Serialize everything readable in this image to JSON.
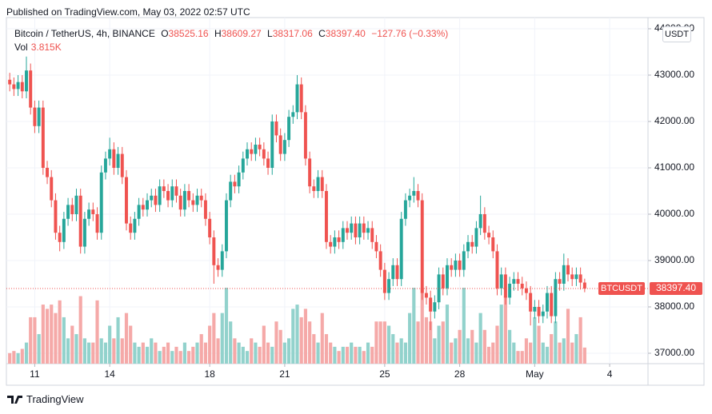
{
  "header": {
    "published": "Published on TradingView.com, May 03, 2022 02:57 UTC"
  },
  "chart_data": {
    "type": "candlestick",
    "title": "Bitcoin / TetherUS, 4h, BINANCE",
    "legend": {
      "open_prefix": "O",
      "open": "38525.16",
      "high_prefix": "H",
      "high": "38609.27",
      "low_prefix": "L",
      "low": "38317.06",
      "close_prefix": "C",
      "close": "38397.40",
      "change": "−127.76 (−0.33%)",
      "volume_label": "Vol",
      "volume": "3.815K"
    },
    "currency": "USDT",
    "symbol": "BTCUSDT",
    "last_price": {
      "value": 38397.4,
      "label": "38397.40"
    },
    "up_color": "#26a69a",
    "down_color": "#ef5350",
    "volume_up_color": "#92d2cc",
    "volume_down_color": "#f5a9a8",
    "grid": true,
    "xlim": [
      -0.8,
      153.2
    ],
    "xticks": [
      {
        "value": 6,
        "label": "11"
      },
      {
        "value": 24,
        "label": "14"
      },
      {
        "value": 48,
        "label": "18"
      },
      {
        "value": 66,
        "label": "21"
      },
      {
        "value": 90,
        "label": "25"
      },
      {
        "value": 108,
        "label": "28"
      },
      {
        "value": 126,
        "label": "May"
      },
      {
        "value": 144,
        "label": "4"
      }
    ],
    "ylim": [
      36776,
      44241
    ],
    "yticks": [
      {
        "value": 37000,
        "label": "37000.00"
      },
      {
        "value": 38000,
        "label": "38000.00"
      },
      {
        "value": 39000,
        "label": "39000.00"
      },
      {
        "value": 40000,
        "label": "40000.00"
      },
      {
        "value": 41000,
        "label": "41000.00"
      },
      {
        "value": 42000,
        "label": "42000.00"
      },
      {
        "value": 43000,
        "label": "43000.00"
      },
      {
        "value": 44000,
        "label": "44000.00"
      }
    ],
    "open": [
      42900,
      42800,
      42700,
      42850,
      42650,
      43100,
      42300,
      41900,
      42300,
      41000,
      40800,
      40300,
      39600,
      39400,
      39900,
      40200,
      40000,
      40400,
      39300,
      39900,
      40100,
      40000,
      39600,
      40900,
      41200,
      41400,
      41000,
      41300,
      40800,
      39800,
      39600,
      39900,
      40200,
      40100,
      40300,
      40400,
      40200,
      40600,
      40500,
      40300,
      40600,
      40400,
      40100,
      40500,
      40300,
      40200,
      40400,
      40300,
      39900,
      39500,
      38900,
      38800,
      39200,
      40300,
      40700,
      40600,
      40900,
      41200,
      41400,
      41300,
      41500,
      41400,
      41200,
      41000,
      42000,
      41700,
      41300,
      41600,
      42100,
      42200,
      42800,
      42200,
      41200,
      40600,
      40500,
      40800,
      40500,
      39400,
      39300,
      39500,
      39400,
      39700,
      39600,
      39800,
      39500,
      39800,
      39600,
      39700,
      39400,
      39200,
      38800,
      38300,
      38600,
      38900,
      38600,
      39900,
      40300,
      40400,
      40500,
      40300,
      38300,
      38200,
      37900,
      38100,
      38700,
      38400,
      38900,
      38800,
      39000,
      38800,
      39200,
      39400,
      39300,
      39700,
      40000,
      39600,
      39500,
      39200,
      38400,
      38700,
      38200,
      38500,
      38600,
      38500,
      38400,
      38300,
      37900,
      38000,
      37800,
      37900,
      38300,
      37800,
      38600,
      38500,
      38900,
      38700,
      38600,
      38700,
      38525.16
    ],
    "high": [
      43050,
      42950,
      43000,
      43000,
      43400,
      43250,
      42450,
      42450,
      42450,
      41150,
      40950,
      40450,
      39750,
      40050,
      40350,
      40350,
      40550,
      40550,
      40050,
      40250,
      40250,
      40150,
      41050,
      41350,
      41650,
      41550,
      41450,
      41450,
      40950,
      39950,
      40050,
      40350,
      40350,
      40450,
      40550,
      40550,
      40750,
      40750,
      40650,
      40750,
      40750,
      40550,
      40650,
      40650,
      40450,
      40550,
      40550,
      40450,
      40050,
      39650,
      39050,
      39350,
      40450,
      40850,
      40850,
      41050,
      41350,
      41550,
      41550,
      41650,
      41650,
      41550,
      41350,
      42150,
      42150,
      41850,
      41750,
      42250,
      42350,
      43000,
      42950,
      42350,
      41350,
      40750,
      40950,
      40950,
      40650,
      39550,
      39650,
      39650,
      39850,
      39850,
      39950,
      39950,
      39950,
      39950,
      39850,
      39850,
      39550,
      39350,
      38950,
      38750,
      39050,
      39050,
      40050,
      40450,
      40550,
      40800,
      40650,
      40450,
      38450,
      38350,
      38250,
      38850,
      38850,
      39050,
      39050,
      39150,
      39150,
      39350,
      39550,
      39550,
      39850,
      40400,
      40150,
      39750,
      39650,
      39350,
      38850,
      38850,
      38650,
      38750,
      38750,
      38650,
      38550,
      38450,
      38150,
      38150,
      38050,
      38450,
      38450,
      38750,
      38750,
      39150,
      39050,
      38850,
      38850,
      38850,
      38609.27
    ],
    "low": [
      42650,
      42550,
      42550,
      42500,
      42500,
      42150,
      41750,
      41750,
      40850,
      40650,
      40150,
      39450,
      39200,
      39250,
      39750,
      39850,
      39850,
      39150,
      39150,
      39750,
      39850,
      39450,
      39450,
      40750,
      41050,
      40850,
      40850,
      40650,
      39650,
      39450,
      39450,
      39750,
      39950,
      39950,
      40150,
      40050,
      40050,
      40350,
      40150,
      40150,
      40250,
      39950,
      39950,
      40150,
      40050,
      40050,
      40150,
      39750,
      39350,
      38500,
      38650,
      38650,
      39050,
      40150,
      40450,
      40450,
      40750,
      41050,
      41150,
      41150,
      41250,
      41050,
      40850,
      40850,
      41550,
      41150,
      41150,
      41450,
      41950,
      42050,
      42050,
      41050,
      40450,
      40350,
      40350,
      40350,
      39250,
      39150,
      39150,
      39250,
      39250,
      39450,
      39450,
      39350,
      39350,
      39450,
      39450,
      39250,
      39050,
      38650,
      38150,
      38150,
      38450,
      38450,
      38450,
      39750,
      40150,
      40250,
      40150,
      38150,
      38050,
      37500,
      37750,
      37950,
      38250,
      38250,
      38650,
      38650,
      38650,
      38650,
      39050,
      39150,
      39150,
      39550,
      39450,
      39350,
      39050,
      38250,
      38250,
      38050,
      38050,
      38350,
      38350,
      38250,
      38150,
      37600,
      37750,
      37650,
      37650,
      37750,
      37650,
      37650,
      38350,
      38350,
      38550,
      38450,
      38450,
      38375,
      38317.06
    ],
    "close": [
      42800,
      42700,
      42850,
      42650,
      43100,
      42300,
      41900,
      42300,
      41000,
      40800,
      40300,
      39600,
      39400,
      39900,
      40200,
      40000,
      40400,
      39300,
      39900,
      40100,
      40000,
      39600,
      40900,
      41200,
      41400,
      41000,
      41300,
      40800,
      39800,
      39600,
      39900,
      40200,
      40100,
      40300,
      40400,
      40200,
      40600,
      40500,
      40300,
      40600,
      40400,
      40100,
      40500,
      40300,
      40200,
      40400,
      40300,
      39900,
      39500,
      38900,
      38800,
      39200,
      40300,
      40700,
      40600,
      40900,
      41200,
      41400,
      41300,
      41500,
      41400,
      41200,
      41000,
      42000,
      41700,
      41300,
      41600,
      42100,
      42200,
      42800,
      42200,
      41200,
      40600,
      40500,
      40800,
      40500,
      39400,
      39300,
      39500,
      39400,
      39700,
      39600,
      39800,
      39500,
      39800,
      39600,
      39700,
      39400,
      39200,
      38800,
      38300,
      38600,
      38900,
      38600,
      39900,
      40300,
      40400,
      40500,
      40300,
      38300,
      38200,
      37900,
      38100,
      38700,
      38400,
      38900,
      38800,
      39000,
      38800,
      39200,
      39400,
      39300,
      39700,
      40000,
      39600,
      39500,
      39200,
      38400,
      38700,
      38200,
      38500,
      38600,
      38500,
      38400,
      38300,
      37900,
      38000,
      37800,
      37900,
      38300,
      37800,
      38600,
      38500,
      38900,
      38700,
      38600,
      38700,
      38525.16,
      38397.4
    ],
    "volume": [
      2.5,
      3,
      2.5,
      3.5,
      5,
      11,
      11,
      7,
      14,
      13,
      14,
      12,
      15,
      11,
      6,
      9,
      7,
      16,
      6,
      5,
      5,
      15,
      6,
      5,
      9,
      6,
      11,
      6,
      12,
      9,
      5,
      4,
      5,
      4,
      6,
      5,
      3,
      4,
      5,
      3,
      4,
      3,
      5,
      3,
      4,
      5,
      7,
      5,
      9,
      12,
      6,
      12,
      18,
      10,
      6,
      5,
      4,
      3,
      6,
      5,
      4,
      9,
      5,
      4,
      10,
      8,
      5,
      6,
      13,
      14,
      11,
      13,
      10,
      7,
      5,
      12,
      7,
      5,
      4,
      3,
      4,
      4,
      5,
      4,
      4,
      3,
      5,
      4,
      10,
      10,
      10,
      9,
      7,
      5,
      6,
      5,
      12,
      18,
      10,
      18,
      11,
      10,
      6,
      9,
      10,
      14,
      5,
      6,
      8,
      18,
      6,
      8,
      5,
      12,
      8,
      4,
      5,
      9,
      14,
      16,
      8,
      5,
      3,
      3,
      6,
      5,
      11,
      9,
      5,
      4,
      7,
      10,
      5,
      6,
      13,
      5,
      7,
      11,
      3.815
    ]
  },
  "footer": {
    "brand": "TradingView"
  }
}
